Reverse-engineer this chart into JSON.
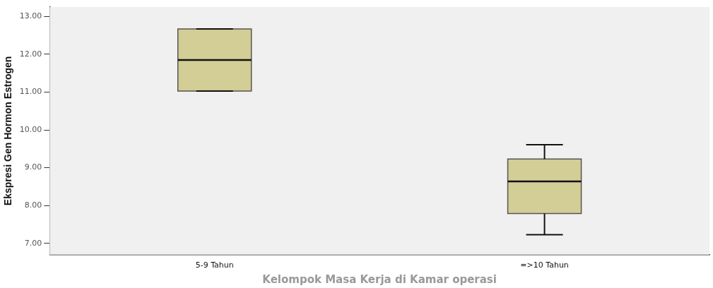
{
  "chart_data": {
    "type": "box",
    "xlabel": "Kelompok Masa Kerja di Kamar operasi",
    "ylabel": "Ekspresi Gen Hormon Estrogen",
    "categories": [
      "5-9 Tahun",
      "=>10 Tahun"
    ],
    "boxes": [
      {
        "low": 11.03,
        "q1": 11.03,
        "median": 11.85,
        "q3": 12.67,
        "high": 12.67
      },
      {
        "low": 7.23,
        "q1": 7.79,
        "median": 8.64,
        "q3": 9.23,
        "high": 9.61
      }
    ],
    "color": "#d3cd96",
    "ylim": [
      6.7,
      13.25
    ],
    "yticks": [
      {
        "value": 7,
        "label": "7.00"
      },
      {
        "value": 8,
        "label": "8.00"
      },
      {
        "value": 9,
        "label": "9.00"
      },
      {
        "value": 10,
        "label": "10.00"
      },
      {
        "value": 11,
        "label": "11.00"
      },
      {
        "value": 12,
        "label": "12.00"
      },
      {
        "value": 13,
        "label": "13.00"
      }
    ],
    "grid": false,
    "legend": false
  }
}
